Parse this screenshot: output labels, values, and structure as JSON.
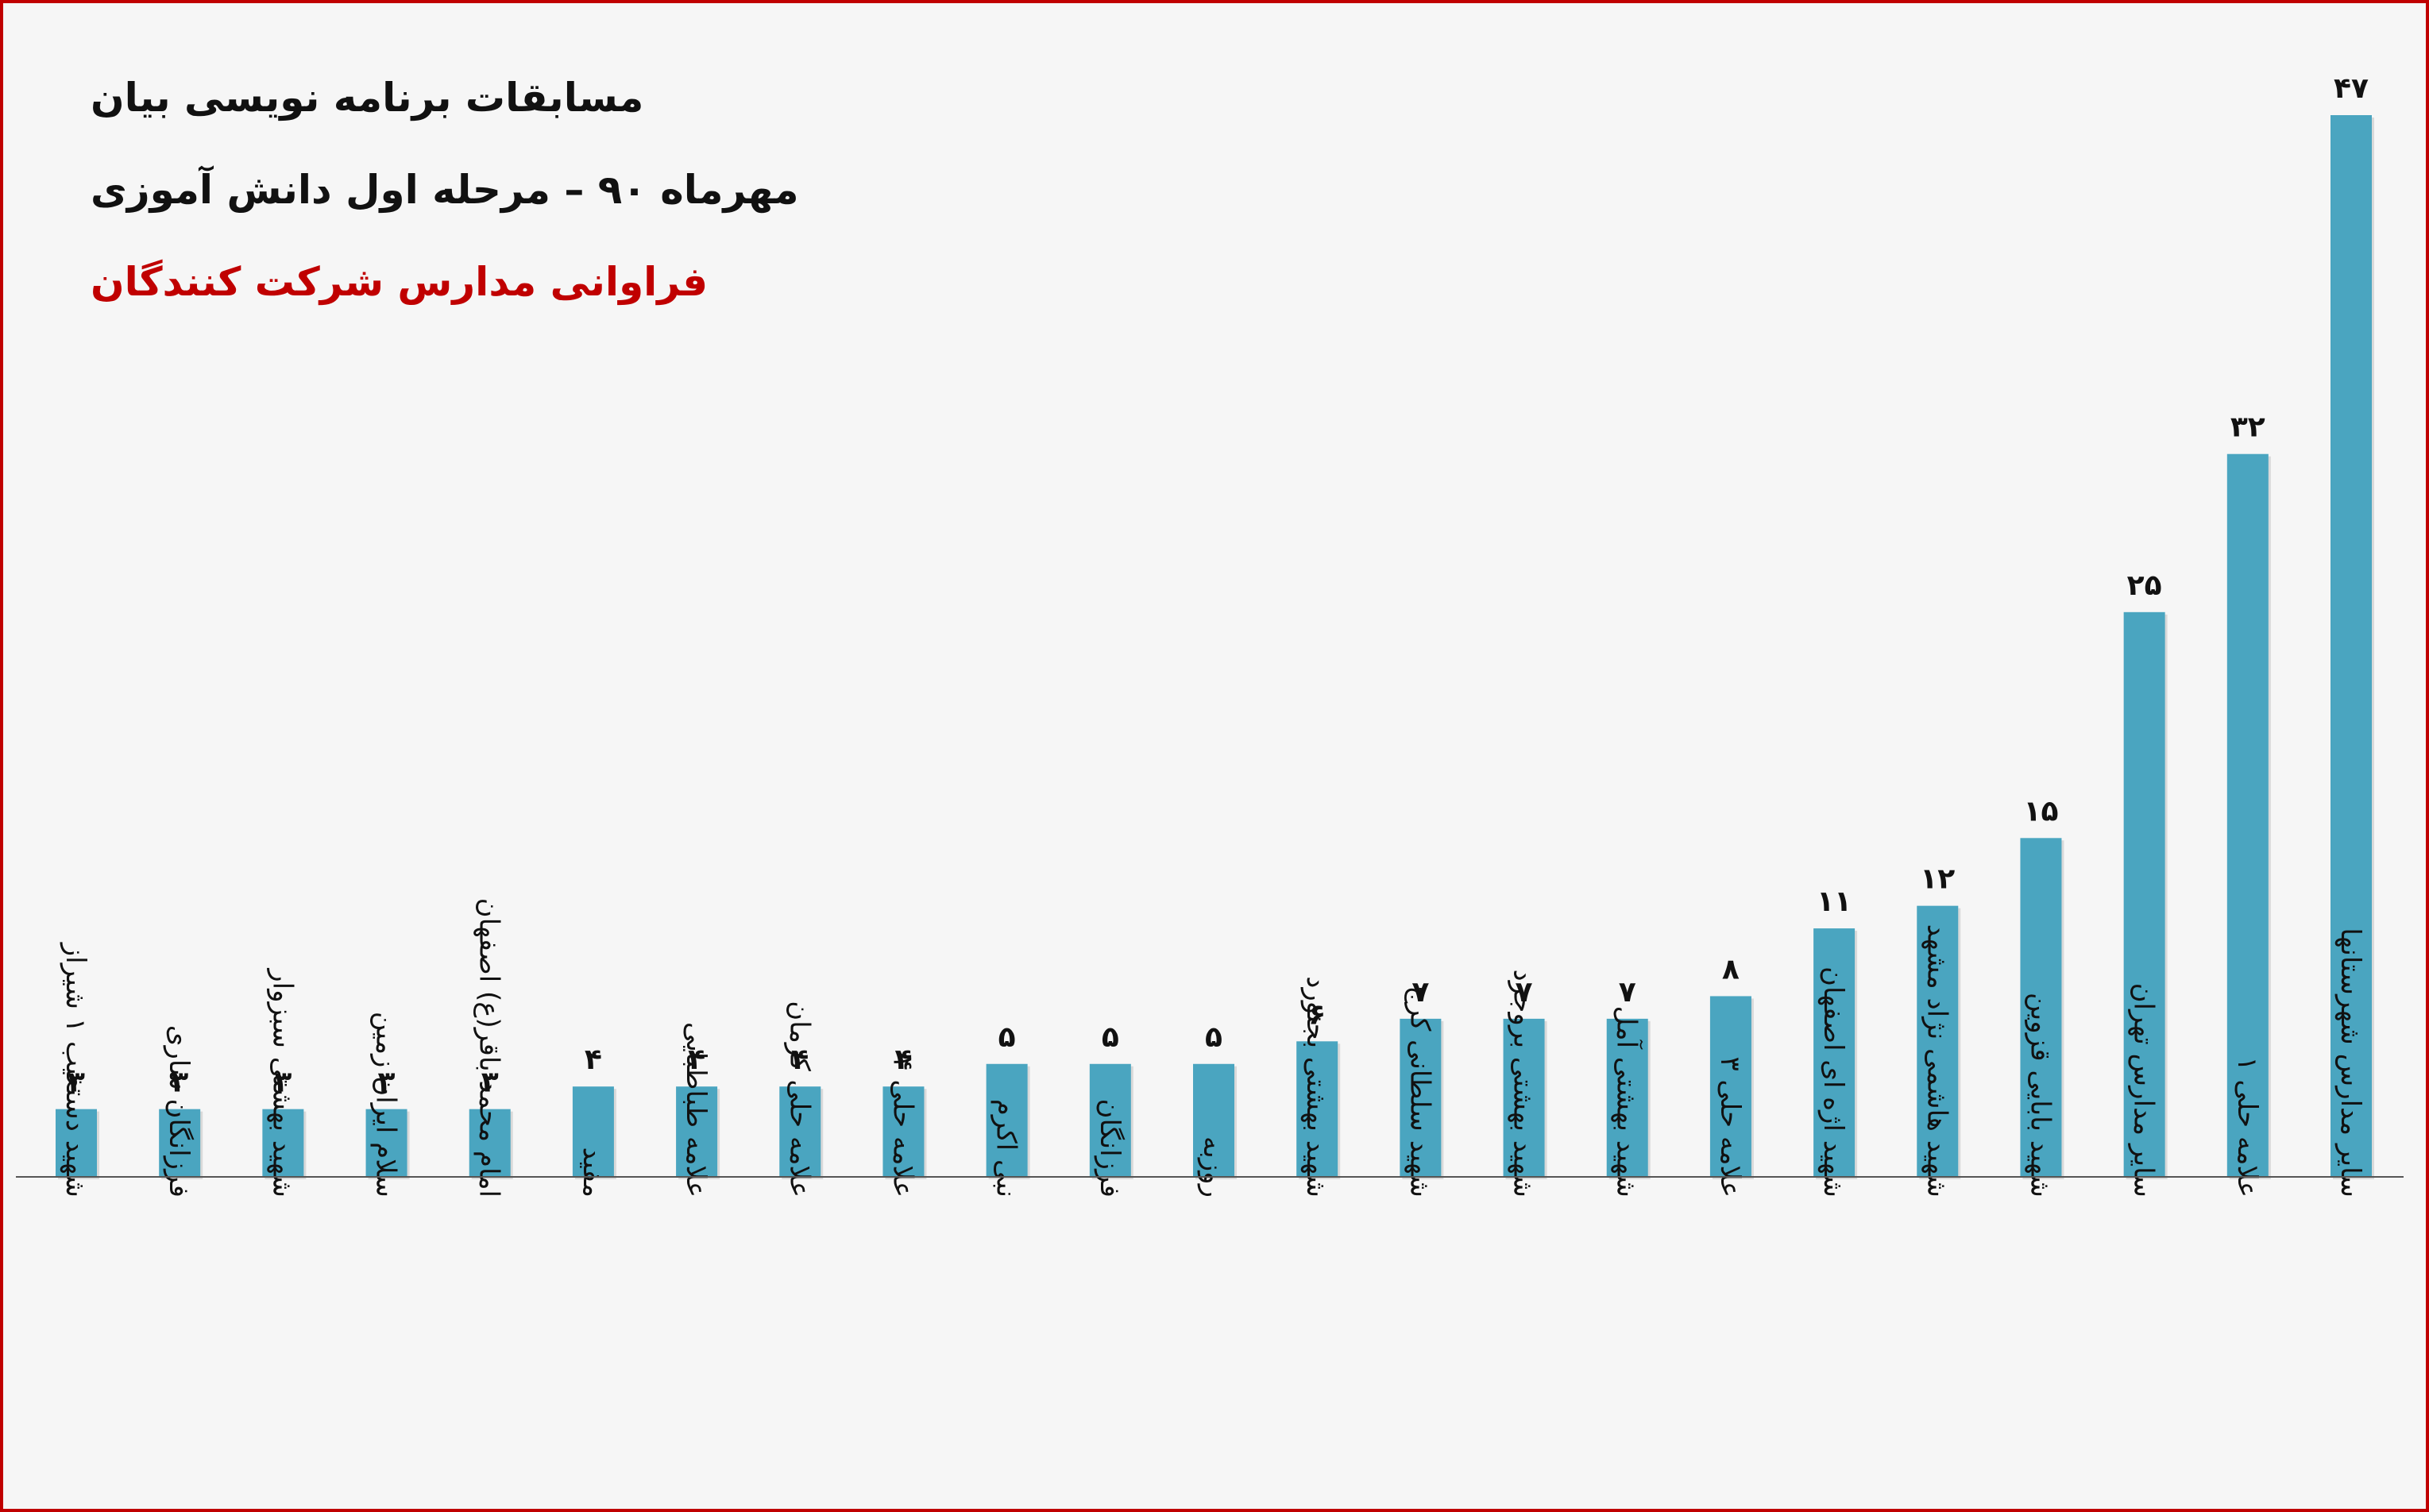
{
  "chart_data": {
    "type": "bar",
    "title": "مسابقات برنامه نویسی بیان",
    "subtitle": "مهرماه ۹۰ – مرحله اول دانش آموزی",
    "subtitle2": "فراوانی مدارس شرکت کنندگان",
    "xlabel": "",
    "ylabel": "",
    "ylim": [
      0,
      47
    ],
    "grid": false,
    "legend": "none",
    "categories": [
      "شهید دستغیب ۱ شیراز",
      "فرزانگان ساری",
      "شهید بهشتی سبزوار",
      "سلام ایران زمین",
      "امام محمد باقر(ع) اصفهان",
      "مفید",
      "علامه طباطبایی",
      "علامه حلی کرمان",
      "علامه حلی ۴",
      "نبی اکرم",
      "فرزانگان",
      "روزبه",
      "شهید بهشتی بجنورد",
      "شهید سلطانی کرج",
      "شهید بهشتی بروجرد",
      "شهید بهشتی آمل",
      "علامه حلی ۳",
      "شهید اژه ای اصفهان",
      "شهید هاشمی نژاد مشهد",
      "شهید بابایی قزوین",
      "سایر مدارس تهران",
      "علامه حلی ۱",
      "سایر مدارس شهرستانها"
    ],
    "values": [
      3,
      3,
      3,
      3,
      3,
      4,
      4,
      4,
      4,
      5,
      5,
      5,
      6,
      7,
      7,
      7,
      8,
      11,
      12,
      15,
      25,
      32,
      47
    ],
    "value_labels": [
      "۳",
      "۳",
      "۳",
      "۳",
      "۳",
      "۴",
      "۴",
      "۴",
      "۴",
      "۵",
      "۵",
      "۵",
      "۶",
      "۷",
      "۷",
      "۷",
      "۸",
      "۱۱",
      "۱۲",
      "۱۵",
      "۲۵",
      "۳۲",
      "۴۷"
    ],
    "colors": {
      "bar": "#4aa5c0",
      "title_accent": "#c00000",
      "border": "#c00000",
      "axis": "#555555"
    }
  }
}
